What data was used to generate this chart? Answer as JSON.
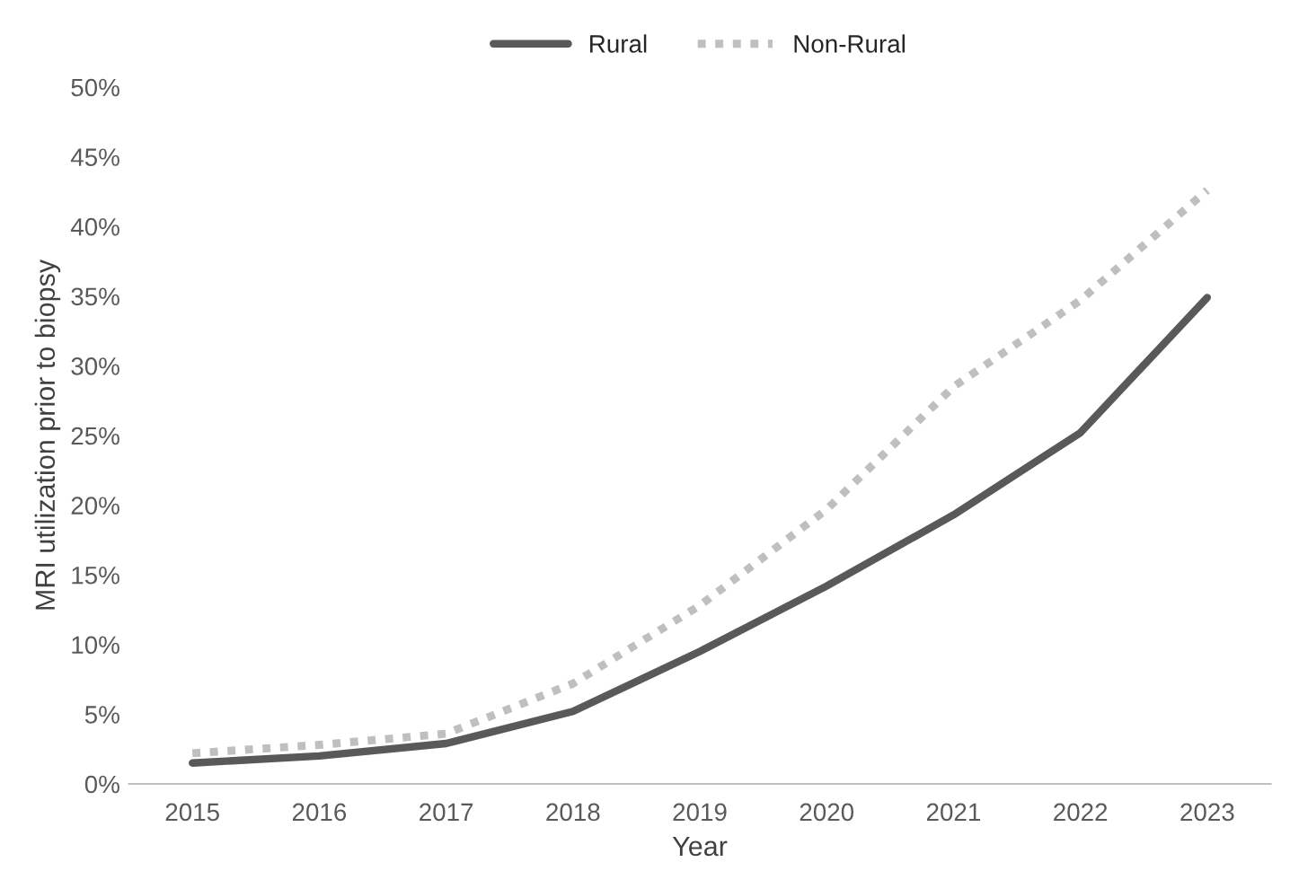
{
  "chart_data": {
    "type": "line",
    "xlabel": "Year",
    "ylabel": "MRI utilization prior to biopsy",
    "categories": [
      "2015",
      "2016",
      "2017",
      "2018",
      "2019",
      "2020",
      "2021",
      "2022",
      "2023"
    ],
    "series": [
      {
        "name": "Rural",
        "color": "#595959",
        "line_style": "solid",
        "values": [
          1.5,
          2.0,
          2.9,
          5.2,
          9.5,
          14.2,
          19.3,
          25.2,
          34.9
        ]
      },
      {
        "name": "Non-Rural",
        "color": "#bfbfbf",
        "line_style": "dotted",
        "values": [
          2.2,
          2.8,
          3.6,
          7.2,
          12.8,
          19.7,
          28.5,
          34.7,
          42.6
        ]
      }
    ],
    "ylim": [
      0,
      50
    ],
    "yticks": [
      {
        "value": 0,
        "label": "0%"
      },
      {
        "value": 5,
        "label": "5%"
      },
      {
        "value": 10,
        "label": "10%"
      },
      {
        "value": 15,
        "label": "15%"
      },
      {
        "value": 20,
        "label": "20%"
      },
      {
        "value": 25,
        "label": "25%"
      },
      {
        "value": 30,
        "label": "30%"
      },
      {
        "value": 35,
        "label": "35%"
      },
      {
        "value": 40,
        "label": "40%"
      },
      {
        "value": 45,
        "label": "45%"
      },
      {
        "value": 50,
        "label": "50%"
      }
    ],
    "grid": false,
    "legend": "top",
    "marker": "none"
  }
}
